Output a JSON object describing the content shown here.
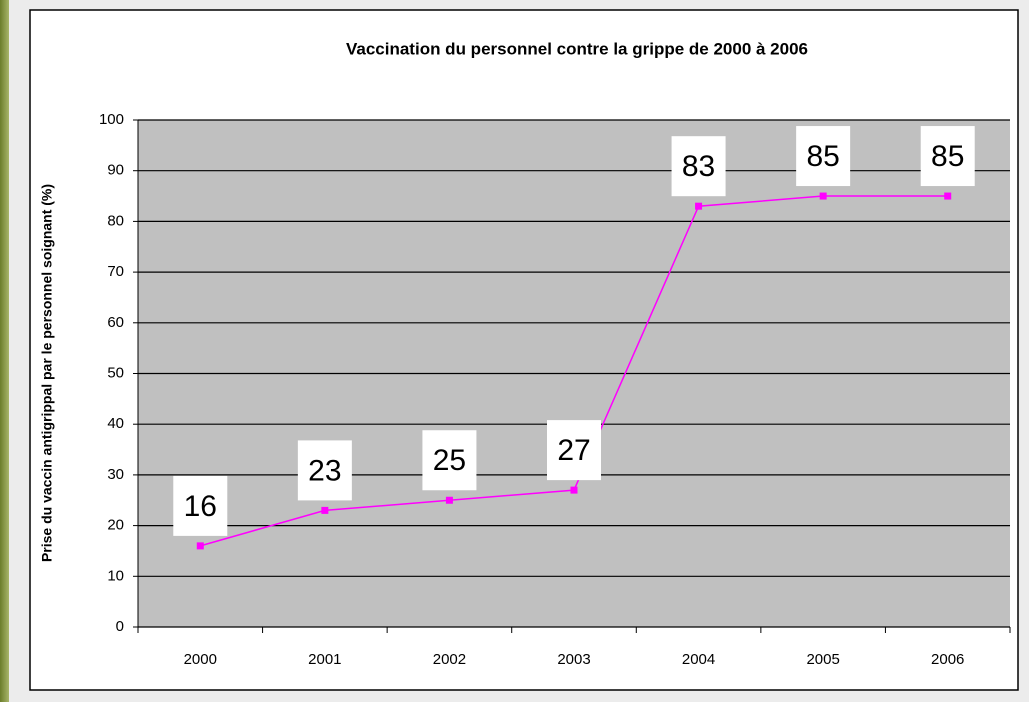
{
  "chart_data": {
    "type": "line",
    "title": "Vaccination du personnel contre la grippe de 2000 à 2006",
    "y_label": "Prise du vaccin antigrippal par le personnel soignant (%)",
    "categories": [
      "2000",
      "2001",
      "2002",
      "2003",
      "2004",
      "2005",
      "2006"
    ],
    "values": [
      16,
      23,
      25,
      27,
      83,
      85,
      85
    ],
    "color": "#ff00ff",
    "ylim": [
      0,
      100
    ],
    "yticks": [
      0,
      10,
      20,
      30,
      40,
      50,
      60,
      70,
      80,
      90,
      100
    ],
    "grid": true
  }
}
